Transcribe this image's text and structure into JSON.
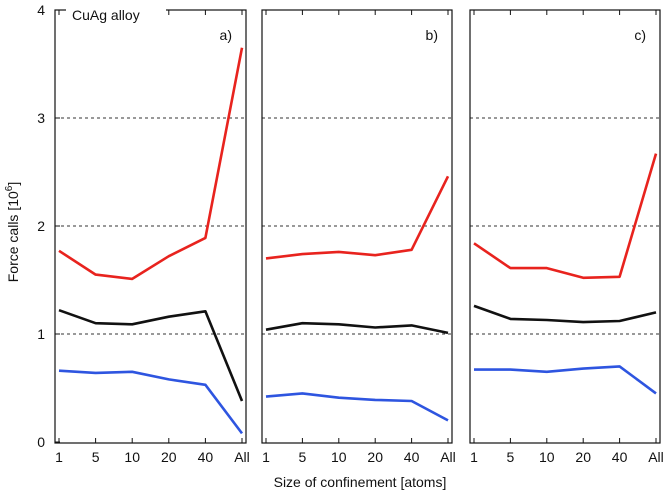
{
  "chart_data": {
    "type": "line",
    "title": "CuAg alloy",
    "ylabel": "Force calls [10",
    "ylabel_sup": "6",
    "ylabel_close": "]",
    "xlabel": "Size of confinement [atoms]",
    "categories": [
      "1",
      "5",
      "10",
      "20",
      "40",
      "All"
    ],
    "ylim": [
      0,
      4
    ],
    "yticks": [
      "0",
      "1",
      "2",
      "3",
      "4"
    ],
    "grid_y": [
      1,
      2,
      3
    ],
    "series_colors": {
      "red": "#e8231e",
      "black": "#111111",
      "blue": "#2e55e0"
    },
    "panels": [
      {
        "label": "a)",
        "series": [
          {
            "name": "red",
            "values": [
              1.77,
              1.55,
              1.51,
              1.72,
              1.89,
              3.65
            ]
          },
          {
            "name": "black",
            "values": [
              1.22,
              1.1,
              1.09,
              1.16,
              1.21,
              0.38
            ]
          },
          {
            "name": "blue",
            "values": [
              0.66,
              0.64,
              0.65,
              0.58,
              0.53,
              0.08
            ]
          }
        ]
      },
      {
        "label": "b)",
        "series": [
          {
            "name": "red",
            "values": [
              1.7,
              1.74,
              1.76,
              1.73,
              1.78,
              2.46
            ]
          },
          {
            "name": "black",
            "values": [
              1.04,
              1.1,
              1.09,
              1.06,
              1.08,
              1.01
            ]
          },
          {
            "name": "blue",
            "values": [
              0.42,
              0.45,
              0.41,
              0.39,
              0.38,
              0.2
            ]
          }
        ]
      },
      {
        "label": "c)",
        "series": [
          {
            "name": "red",
            "values": [
              1.84,
              1.61,
              1.61,
              1.52,
              1.53,
              2.67
            ]
          },
          {
            "name": "black",
            "values": [
              1.26,
              1.14,
              1.13,
              1.11,
              1.12,
              1.2
            ]
          },
          {
            "name": "blue",
            "values": [
              0.67,
              0.67,
              0.65,
              0.68,
              0.7,
              0.45
            ]
          }
        ]
      }
    ]
  }
}
